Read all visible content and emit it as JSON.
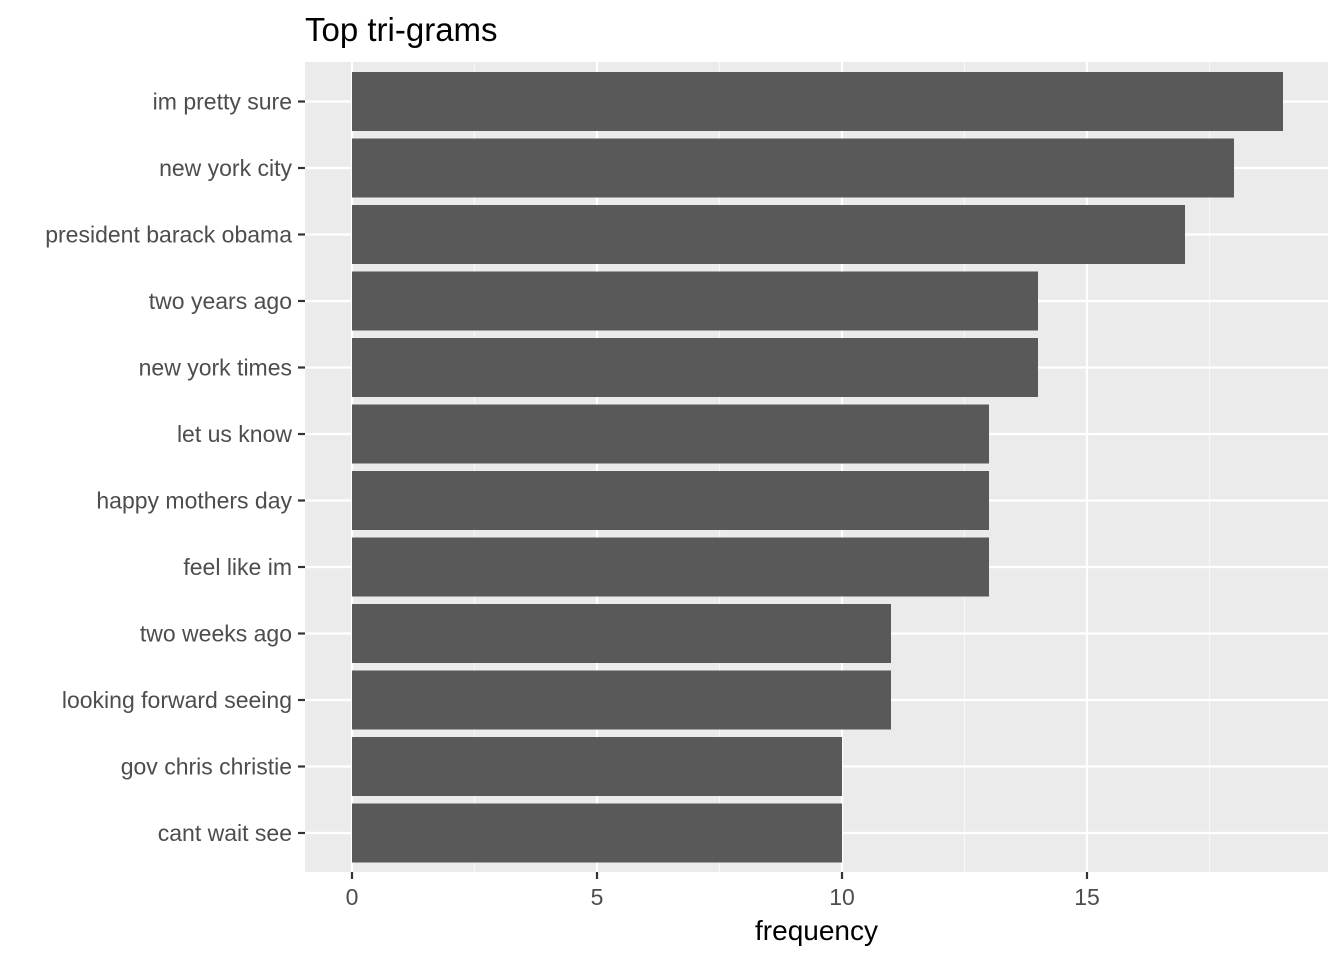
{
  "chart_data": {
    "type": "bar",
    "orientation": "horizontal",
    "title": "Top tri-grams",
    "xlabel": "frequency",
    "ylabel": "",
    "xlim": [
      0,
      19
    ],
    "x_ticks": [
      0,
      5,
      10,
      15
    ],
    "x_tick_labels": [
      "0",
      "5",
      "10",
      "15"
    ],
    "grid": true,
    "legend": "none",
    "categories": [
      "im pretty sure",
      "new york city",
      "president barack obama",
      "two years ago",
      "new york times",
      "let us know",
      "happy mothers day",
      "feel like im",
      "two weeks ago",
      "looking forward seeing",
      "gov chris christie",
      "cant wait see"
    ],
    "values": [
      19,
      18,
      17,
      14,
      14,
      13,
      13,
      13,
      11,
      11,
      10,
      10
    ],
    "colors": {
      "bar": "#595959",
      "panel_background": "#ebebeb",
      "grid_major": "#ffffff",
      "grid_minor": "#f7f7f7",
      "tick_label": "#4d4d4d",
      "title": "#000000",
      "tick_mark": "#333333"
    }
  }
}
